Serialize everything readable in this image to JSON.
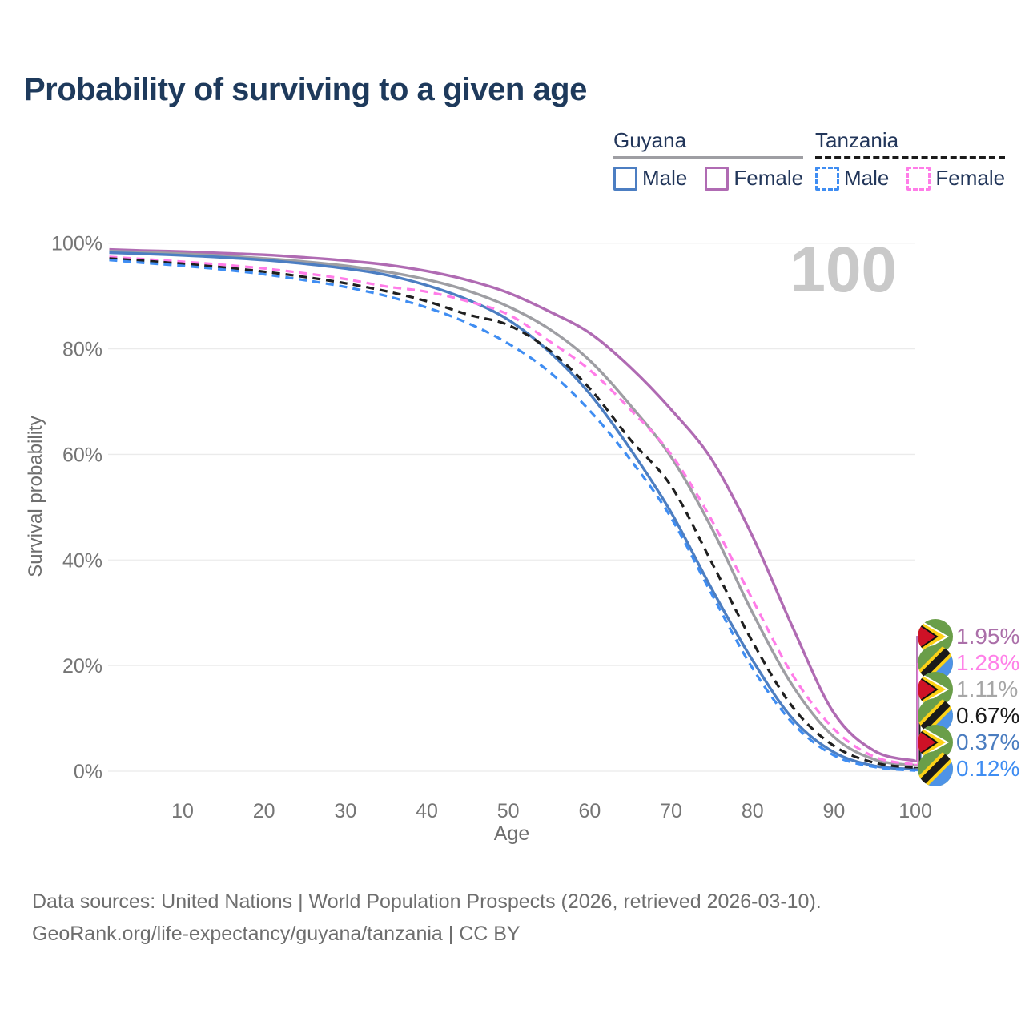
{
  "header": {
    "title": "Probability of surviving to a given age"
  },
  "watermark": "100",
  "legend": {
    "groups": [
      {
        "country": "Guyana",
        "line_style": "solid",
        "line_color": "#9e9ea3",
        "items": [
          {
            "label": "Male",
            "color": "#4c7ec2",
            "dashed": false
          },
          {
            "label": "Female",
            "color": "#b06bb3",
            "dashed": false
          }
        ]
      },
      {
        "country": "Tanzania",
        "line_style": "dashed",
        "line_color": "#1a1a1a",
        "items": [
          {
            "label": "Male",
            "color": "#3f8df2",
            "dashed": true
          },
          {
            "label": "Female",
            "color": "#ff7ce8",
            "dashed": true
          }
        ]
      }
    ]
  },
  "chart_data": {
    "type": "line",
    "title": "Probability of surviving to a given age",
    "xlabel": "Age",
    "ylabel": "Survival probability",
    "xlim": [
      0,
      100
    ],
    "ylim": [
      0,
      100
    ],
    "grid": "horizontal",
    "x_ticks": [
      10,
      20,
      30,
      40,
      50,
      60,
      70,
      80,
      90,
      100
    ],
    "y_ticks": [
      {
        "pct": 100,
        "label": "100%"
      },
      {
        "pct": 80,
        "label": "80%"
      },
      {
        "pct": 60,
        "label": "60%"
      },
      {
        "pct": 40,
        "label": "40%"
      },
      {
        "pct": 20,
        "label": "20%"
      },
      {
        "pct": 0,
        "label": "0%"
      }
    ],
    "ages": [
      1,
      5,
      10,
      15,
      20,
      25,
      30,
      35,
      40,
      45,
      50,
      55,
      60,
      65,
      70,
      75,
      80,
      85,
      90,
      95,
      100
    ],
    "series": [
      {
        "name": "Guyana Female",
        "country": "guyana",
        "sex": "female",
        "color": "#b06bb3",
        "dashed": false,
        "values": [
          98.8,
          98.6,
          98.4,
          98.1,
          97.8,
          97.3,
          96.7,
          95.9,
          94.7,
          93.0,
          90.6,
          87.1,
          83.0,
          76.5,
          68.5,
          59.0,
          44.5,
          27.0,
          11.0,
          3.8,
          1.95
        ],
        "end_label": {
          "text": "1.95%",
          "color": "#ab6fa9",
          "row": 0
        }
      },
      {
        "name": "Guyana Average",
        "country": "guyana",
        "sex": "both",
        "color": "#9e9ea3",
        "dashed": false,
        "values": [
          98.5,
          98.3,
          98.0,
          97.6,
          97.1,
          96.5,
          95.7,
          94.6,
          93.1,
          91.0,
          88.0,
          83.8,
          77.8,
          69.3,
          59.5,
          46.0,
          30.0,
          16.0,
          6.5,
          2.2,
          1.11
        ],
        "end_label": {
          "text": "1.11%",
          "color": "#a6a6a6",
          "row": 2
        }
      },
      {
        "name": "Guyana Male",
        "country": "guyana",
        "sex": "male",
        "color": "#4c7ec2",
        "dashed": false,
        "values": [
          98.2,
          98.0,
          97.7,
          97.3,
          96.8,
          96.1,
          95.2,
          94.0,
          92.0,
          89.3,
          85.5,
          79.5,
          71.5,
          61.0,
          49.0,
          34.5,
          21.0,
          9.8,
          3.6,
          1.0,
          0.37
        ],
        "end_label": {
          "text": "0.37%",
          "color": "#4b7dc0",
          "row": 4
        }
      },
      {
        "name": "Tanzania Female",
        "country": "tanzania",
        "sex": "female",
        "color": "#ff7ce8",
        "dashed": true,
        "values": [
          97.4,
          97.0,
          96.5,
          95.9,
          95.2,
          94.3,
          93.2,
          91.8,
          90.8,
          89.0,
          86.5,
          81.5,
          76.0,
          68.5,
          60.0,
          47.5,
          32.5,
          18.0,
          8.0,
          2.7,
          1.28
        ],
        "end_label": {
          "text": "1.28%",
          "color": "#ff80e8",
          "row": 1
        }
      },
      {
        "name": "Tanzania Average",
        "country": "tanzania",
        "sex": "both",
        "color": "#1f1f1f",
        "dashed": true,
        "values": [
          97.1,
          96.7,
          96.1,
          95.4,
          94.6,
          93.6,
          92.4,
          90.9,
          89.0,
          86.5,
          84.5,
          79.8,
          72.5,
          62.8,
          54.0,
          39.5,
          24.5,
          12.0,
          4.8,
          1.6,
          0.67
        ],
        "end_label": {
          "text": "0.67%",
          "color": "#1a1a1a",
          "row": 3
        }
      },
      {
        "name": "Tanzania Male",
        "country": "tanzania",
        "sex": "male",
        "color": "#3f8df2",
        "dashed": true,
        "values": [
          96.8,
          96.3,
          95.7,
          95.0,
          94.1,
          93.0,
          91.7,
          90.0,
          87.8,
          84.9,
          81.0,
          75.7,
          68.3,
          59.0,
          48.0,
          33.5,
          19.5,
          9.0,
          3.0,
          0.8,
          0.12
        ],
        "end_label": {
          "text": "0.12%",
          "color": "#3f8df2",
          "row": 5
        }
      }
    ]
  },
  "footer": {
    "line1": "Data sources: United Nations | World Population Prospects (2026, retrieved 2026-03-10).",
    "line2": "GeoRank.org/life-expectancy/guyana/tanzania | CC BY"
  }
}
